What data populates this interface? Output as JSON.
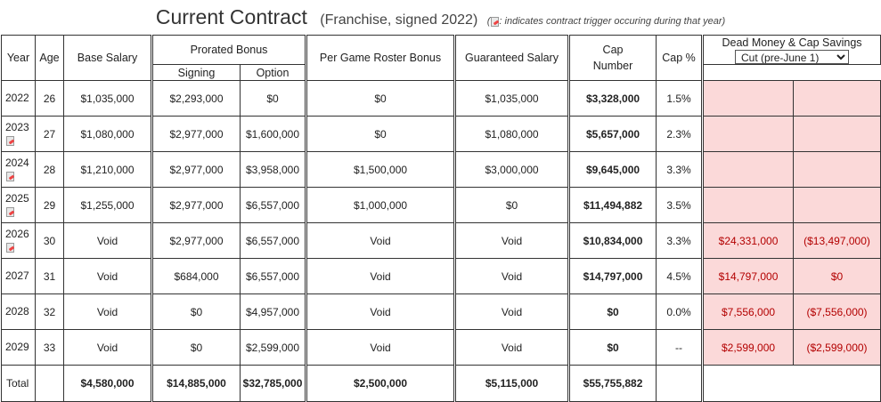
{
  "header": {
    "title": "Current Contract",
    "subtitle": "(Franchise, signed 2022)",
    "note_open": "(",
    "note_text": ": indicates contract trigger occuring during that year)",
    "trigger_icon": "contract-trigger-icon"
  },
  "columns": {
    "year": "Year",
    "age": "Age",
    "base_salary": "Base Salary",
    "prorated_bonus": "Prorated Bonus",
    "signing": "Signing",
    "option": "Option",
    "per_game": "Per Game Roster Bonus",
    "guaranteed": "Guaranteed Salary",
    "cap_number": "Cap Number",
    "cap_pct": "Cap %",
    "dead_money": "Dead Money & Cap Savings",
    "dead_select": "Cut (pre-June 1)"
  },
  "rows": [
    {
      "year": "2022",
      "age": "26",
      "base": "$1,035,000",
      "signing": "$2,293,000",
      "option": "$0",
      "pergame": "$0",
      "guaranteed": "$1,035,000",
      "cap": "$3,328,000",
      "pct": "1.5%",
      "dead": "",
      "savings": "",
      "trigger": false
    },
    {
      "year": "2023",
      "age": "27",
      "base": "$1,080,000",
      "signing": "$2,977,000",
      "option": "$1,600,000",
      "pergame": "$0",
      "guaranteed": "$1,080,000",
      "cap": "$5,657,000",
      "pct": "2.3%",
      "dead": "",
      "savings": "",
      "trigger": true
    },
    {
      "year": "2024",
      "age": "28",
      "base": "$1,210,000",
      "signing": "$2,977,000",
      "option": "$3,958,000",
      "pergame": "$1,500,000",
      "guaranteed": "$3,000,000",
      "cap": "$9,645,000",
      "pct": "3.3%",
      "dead": "",
      "savings": "",
      "trigger": true
    },
    {
      "year": "2025",
      "age": "29",
      "base": "$1,255,000",
      "signing": "$2,977,000",
      "option": "$6,557,000",
      "pergame": "$1,000,000",
      "guaranteed": "$0",
      "cap": "$11,494,882",
      "pct": "3.5%",
      "dead": "",
      "savings": "",
      "trigger": true
    },
    {
      "year": "2026",
      "age": "30",
      "base": "Void",
      "signing": "$2,977,000",
      "option": "$6,557,000",
      "pergame": "Void",
      "guaranteed": "Void",
      "cap": "$10,834,000",
      "pct": "3.3%",
      "dead": "$24,331,000",
      "savings": "($13,497,000)",
      "trigger": true
    },
    {
      "year": "2027",
      "age": "31",
      "base": "Void",
      "signing": "$684,000",
      "option": "$6,557,000",
      "pergame": "Void",
      "guaranteed": "Void",
      "cap": "$14,797,000",
      "pct": "4.5%",
      "dead": "$14,797,000",
      "savings": "$0",
      "trigger": false
    },
    {
      "year": "2028",
      "age": "32",
      "base": "Void",
      "signing": "$0",
      "option": "$4,957,000",
      "pergame": "Void",
      "guaranteed": "Void",
      "cap": "$0",
      "pct": "0.0%",
      "dead": "$7,556,000",
      "savings": "($7,556,000)",
      "trigger": false
    },
    {
      "year": "2029",
      "age": "33",
      "base": "Void",
      "signing": "$0",
      "option": "$2,599,000",
      "pergame": "Void",
      "guaranteed": "Void",
      "cap": "$0",
      "pct": "--",
      "dead": "$2,599,000",
      "savings": "($2,599,000)",
      "trigger": false
    }
  ],
  "total": {
    "label": "Total",
    "base": "$4,580,000",
    "signing": "$14,885,000",
    "option": "$32,785,000",
    "pergame": "$2,500,000",
    "guaranteed": "$5,115,000",
    "cap": "$55,755,882"
  },
  "colors": {
    "dead_bg": "#fbd9d9",
    "dead_text": "#b30000"
  }
}
